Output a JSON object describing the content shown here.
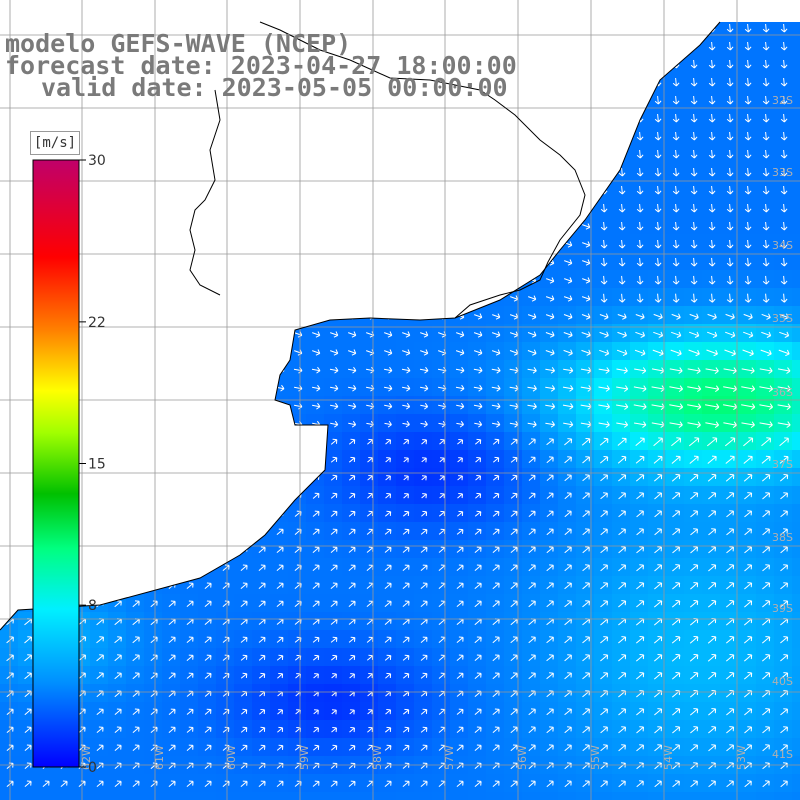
{
  "header": {
    "line1": "modelo GEFS-WAVE (NCEP)",
    "line2": "forecast date: 2023-04-27 18:00:00",
    "line3": "valid date: 2023-05-05 00:00:00"
  },
  "colorbar": {
    "units": "[m/s]",
    "ticks": [
      "30",
      "22",
      "15",
      "8",
      "0"
    ],
    "tick_values": [
      30,
      22,
      15,
      8,
      0
    ],
    "colors": [
      "#0000ff",
      "#0080ff",
      "#00e0ff",
      "#00ff80",
      "#00c000",
      "#80ff00",
      "#ffff00",
      "#ff8000",
      "#ff0000",
      "#c0006a"
    ]
  },
  "lat_labels": [
    "32S",
    "33S",
    "34S",
    "35S",
    "36S",
    "37S",
    "38S",
    "39S",
    "40S",
    "41S"
  ],
  "lon_labels": [
    "62W",
    "61W",
    "60W",
    "59W",
    "58W",
    "57W",
    "56W",
    "55W",
    "54W",
    "53W"
  ],
  "colors": {
    "land": "#ffffff",
    "grid": "#999999",
    "coast": "#000000",
    "arrows": "#ffffff",
    "header_text": "#7a7a7a"
  }
}
